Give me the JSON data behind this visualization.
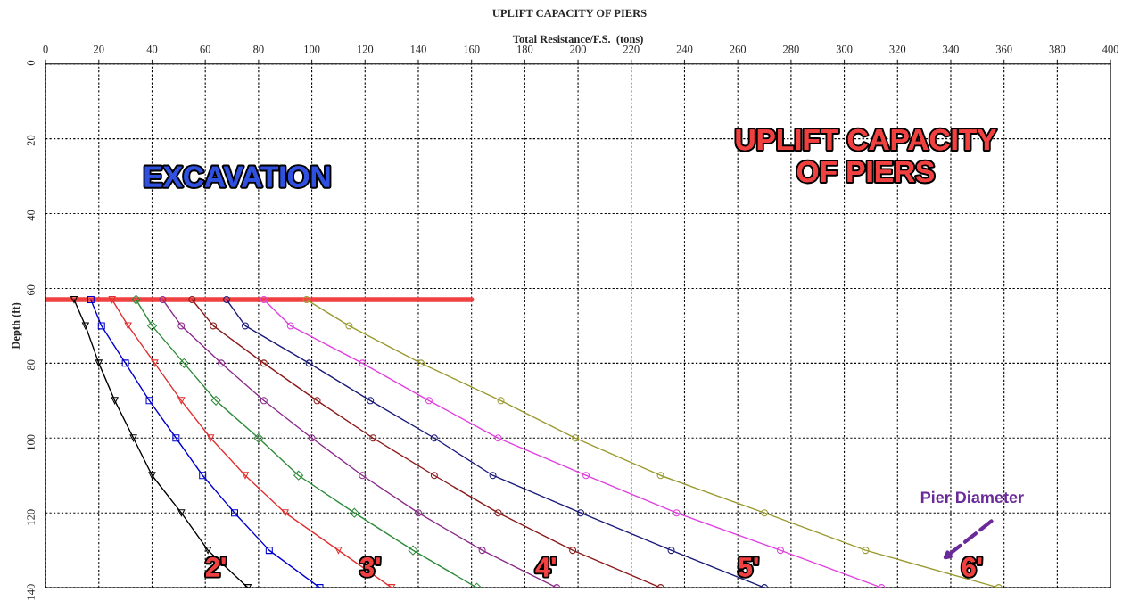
{
  "chart_data": {
    "type": "line",
    "title": "UPLIFT CAPACITY OF PIERS",
    "xlabel": "Total Resistance/F.S.  (tons)",
    "ylabel": "Depth (ft)",
    "xlim": [
      0,
      400
    ],
    "xticks": [
      0,
      20,
      40,
      60,
      80,
      100,
      120,
      140,
      160,
      180,
      200,
      220,
      240,
      260,
      280,
      300,
      320,
      340,
      360,
      380,
      400
    ],
    "ylim": [
      140,
      0
    ],
    "yticks": [
      0,
      20,
      40,
      60,
      80,
      100,
      120,
      140
    ],
    "grid": true,
    "line_style": "solid",
    "series": [
      {
        "color": "#000000",
        "marker": "triangle",
        "x": [
          10.7,
          15,
          20,
          26,
          33,
          40,
          51,
          61,
          76
        ],
        "values": [
          63,
          70,
          80,
          90,
          100,
          110,
          120,
          130,
          140
        ]
      },
      {
        "color": "#0000cc",
        "marker": "square",
        "x": [
          17,
          21,
          30,
          39,
          49,
          59,
          71,
          84,
          103
        ],
        "values": [
          63,
          70,
          80,
          90,
          100,
          110,
          120,
          130,
          140
        ]
      },
      {
        "color": "#e03030",
        "marker": "triangle",
        "x": [
          25,
          31,
          41,
          51,
          62,
          75,
          90,
          110,
          130
        ],
        "values": [
          63,
          70,
          80,
          90,
          100,
          110,
          120,
          130,
          140
        ]
      },
      {
        "color": "#2e8b3a",
        "marker": "diamond",
        "x": [
          34,
          40,
          52,
          64,
          80,
          95,
          116,
          138,
          162
        ],
        "values": [
          63,
          70,
          80,
          90,
          100,
          110,
          120,
          130,
          140
        ]
      },
      {
        "color": "#8b2a8b",
        "marker": "circle",
        "x": [
          44,
          51,
          66,
          82,
          100,
          119,
          140,
          164,
          192
        ],
        "values": [
          63,
          70,
          80,
          90,
          100,
          110,
          120,
          130,
          140
        ]
      },
      {
        "color": "#8b1a1a",
        "marker": "circle",
        "x": [
          55,
          63,
          82,
          102,
          123,
          146,
          170,
          198,
          231
        ],
        "values": [
          63,
          70,
          80,
          90,
          100,
          110,
          120,
          130,
          140
        ]
      },
      {
        "color": "#1a1a7a",
        "marker": "circle",
        "x": [
          68,
          75,
          99,
          122,
          146,
          168,
          201,
          235,
          270
        ],
        "values": [
          63,
          70,
          80,
          90,
          100,
          110,
          120,
          130,
          140
        ]
      },
      {
        "color": "#e040e0",
        "marker": "circle",
        "x": [
          82,
          92,
          119,
          144,
          170,
          203,
          237,
          276,
          314
        ],
        "values": [
          63,
          70,
          80,
          90,
          100,
          110,
          120,
          130,
          140
        ]
      },
      {
        "color": "#9a9a30",
        "marker": "circle",
        "x": [
          98,
          114,
          141,
          171,
          199,
          231,
          270,
          308,
          358
        ],
        "values": [
          63,
          70,
          80,
          90,
          100,
          110,
          120,
          130,
          140
        ]
      },
      {
        "color": "#f04040",
        "marker": "none",
        "x": [
          0,
          160
        ],
        "values": [
          63,
          63
        ]
      }
    ],
    "annotations": [
      "EXCAVATION",
      "UPLIFT CAPACITY\nOF PIERS",
      "Pier Diameter",
      "2'",
      "3'",
      "4'",
      "5'",
      "6'"
    ]
  }
}
